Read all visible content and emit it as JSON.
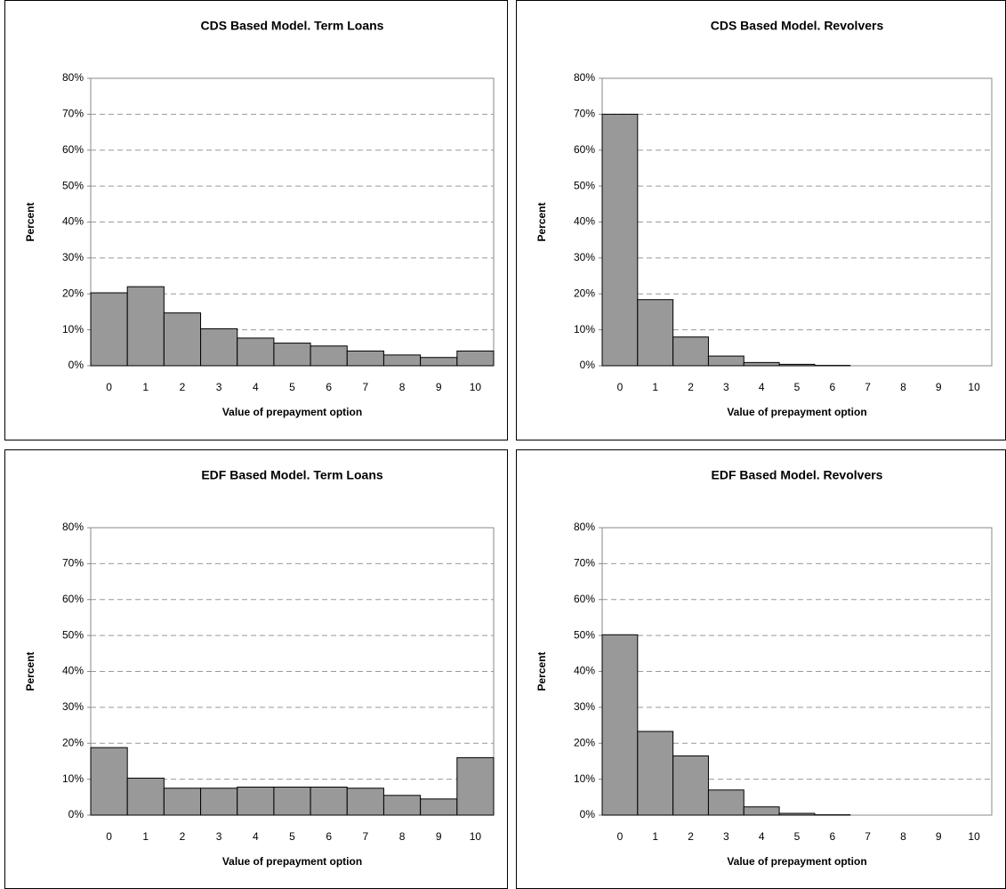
{
  "chart_data": [
    {
      "type": "bar",
      "title": "CDS Based Model. Term Loans",
      "xlabel": "Value of prepayment option",
      "ylabel": "Percent",
      "categories": [
        "0",
        "1",
        "2",
        "3",
        "4",
        "5",
        "6",
        "7",
        "8",
        "9",
        "10"
      ],
      "values": [
        20.3,
        22,
        14.7,
        10.3,
        7.7,
        6.3,
        5.5,
        4.1,
        3,
        2.3,
        4.1
      ],
      "color": "#999999",
      "ylim": [
        0,
        80
      ],
      "yticks": [
        {
          "value": 0,
          "label": "0%"
        },
        {
          "value": 10,
          "label": "10%"
        },
        {
          "value": 20,
          "label": "20%"
        },
        {
          "value": 30,
          "label": "30%"
        },
        {
          "value": 40,
          "label": "40%"
        },
        {
          "value": 50,
          "label": "50%"
        },
        {
          "value": 60,
          "label": "60%"
        },
        {
          "value": 70,
          "label": "70%"
        },
        {
          "value": 80,
          "label": "80%"
        }
      ],
      "grid": true
    },
    {
      "type": "bar",
      "title": "CDS Based Model. Revolvers",
      "xlabel": "Value of prepayment option",
      "ylabel": "Percent",
      "categories": [
        "0",
        "1",
        "2",
        "3",
        "4",
        "5",
        "6",
        "7",
        "8",
        "9",
        "10"
      ],
      "values": [
        70,
        18.4,
        8,
        2.7,
        0.9,
        0.4,
        0.1,
        0,
        0,
        0,
        0
      ],
      "color": "#999999",
      "ylim": [
        0,
        80
      ],
      "yticks": [
        {
          "value": 0,
          "label": "0%"
        },
        {
          "value": 10,
          "label": "10%"
        },
        {
          "value": 20,
          "label": "20%"
        },
        {
          "value": 30,
          "label": "30%"
        },
        {
          "value": 40,
          "label": "40%"
        },
        {
          "value": 50,
          "label": "50%"
        },
        {
          "value": 60,
          "label": "60%"
        },
        {
          "value": 70,
          "label": "70%"
        },
        {
          "value": 80,
          "label": "80%"
        }
      ],
      "grid": true
    },
    {
      "type": "bar",
      "title": "EDF Based Model. Term Loans",
      "xlabel": "Value of prepayment option",
      "ylabel": "Percent",
      "categories": [
        "0",
        "1",
        "2",
        "3",
        "4",
        "5",
        "6",
        "7",
        "8",
        "9",
        "10"
      ],
      "values": [
        18.8,
        10.3,
        7.5,
        7.5,
        7.8,
        7.8,
        7.8,
        7.5,
        5.5,
        4.5,
        16
      ],
      "color": "#999999",
      "ylim": [
        0,
        80
      ],
      "yticks": [
        {
          "value": 0,
          "label": "0%"
        },
        {
          "value": 10,
          "label": "10%"
        },
        {
          "value": 20,
          "label": "20%"
        },
        {
          "value": 30,
          "label": "30%"
        },
        {
          "value": 40,
          "label": "40%"
        },
        {
          "value": 50,
          "label": "50%"
        },
        {
          "value": 60,
          "label": "60%"
        },
        {
          "value": 70,
          "label": "70%"
        },
        {
          "value": 80,
          "label": "80%"
        }
      ],
      "grid": true
    },
    {
      "type": "bar",
      "title": "EDF Based Model. Revolvers",
      "xlabel": "Value of prepayment option",
      "ylabel": "Percent",
      "categories": [
        "0",
        "1",
        "2",
        "3",
        "4",
        "5",
        "6",
        "7",
        "8",
        "9",
        "10"
      ],
      "values": [
        50.2,
        23.3,
        16.5,
        7,
        2.3,
        0.5,
        0.1,
        0,
        0,
        0,
        0
      ],
      "color": "#999999",
      "ylim": [
        0,
        80
      ],
      "yticks": [
        {
          "value": 0,
          "label": "0%"
        },
        {
          "value": 10,
          "label": "10%"
        },
        {
          "value": 20,
          "label": "20%"
        },
        {
          "value": 30,
          "label": "30%"
        },
        {
          "value": 40,
          "label": "40%"
        },
        {
          "value": 50,
          "label": "50%"
        },
        {
          "value": 60,
          "label": "60%"
        },
        {
          "value": 70,
          "label": "70%"
        },
        {
          "value": 80,
          "label": "80%"
        }
      ],
      "grid": true
    }
  ]
}
